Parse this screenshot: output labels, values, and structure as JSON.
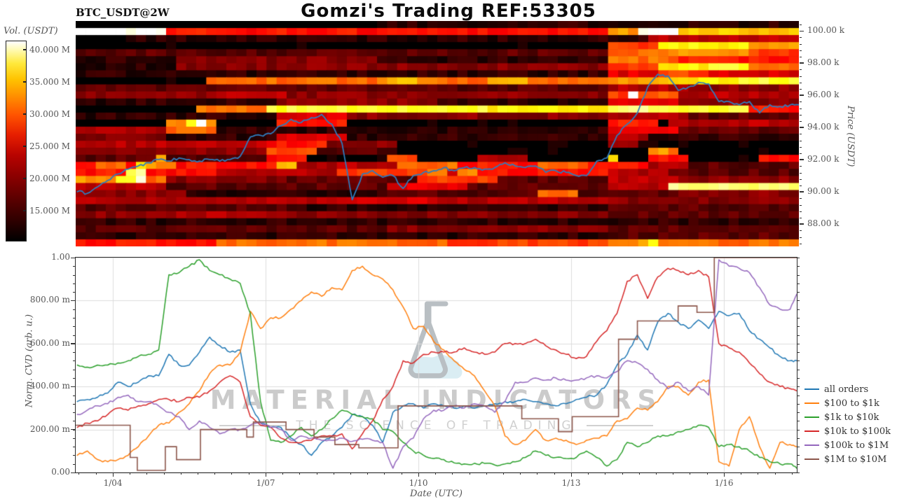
{
  "title": "Gomzi's Trading REF:53305",
  "pair_label": "BTC_USDT@2W",
  "colorbar": {
    "label": "Vol. (USDT)",
    "ticks": [
      {
        "label": "40.000 M",
        "value_m": 40
      },
      {
        "label": "35.000 M",
        "value_m": 35
      },
      {
        "label": "30.000 M",
        "value_m": 30
      },
      {
        "label": "25.000 M",
        "value_m": 25
      },
      {
        "label": "20.000 M",
        "value_m": 20
      },
      {
        "label": "15.000 M",
        "value_m": 15
      }
    ],
    "range_m": [
      10.2,
      41.4
    ]
  },
  "price_axis": {
    "label": "Price (USDT)",
    "ticks": [
      {
        "label": "100.00 k",
        "k": 100
      },
      {
        "label": "98.00 k",
        "k": 98
      },
      {
        "label": "96.00 k",
        "k": 96
      },
      {
        "label": "94.00 k",
        "k": 94
      },
      {
        "label": "92.00 k",
        "k": 92
      },
      {
        "label": "90.00 k",
        "k": 90
      },
      {
        "label": "88.00 k",
        "k": 88
      }
    ]
  },
  "cvd_axis": {
    "label": "Norm. CVD (arb. u.)",
    "ticks": [
      {
        "label": "1.00",
        "v": 1.0
      },
      {
        "label": "800.00 m",
        "v": 0.8
      },
      {
        "label": "600.00 m",
        "v": 0.6
      },
      {
        "label": "400.00 m",
        "v": 0.4
      },
      {
        "label": "200.00 m",
        "v": 0.2
      },
      {
        "label": "0.00",
        "v": 0.0
      }
    ]
  },
  "date_axis": {
    "label": "Date (UTC)",
    "ticks": [
      {
        "label": "1/04",
        "day": 4
      },
      {
        "label": "1/07",
        "day": 7
      },
      {
        "label": "1/10",
        "day": 10
      },
      {
        "label": "1/13",
        "day": 13
      },
      {
        "label": "1/16",
        "day": 16
      }
    ]
  },
  "watermark": {
    "line1": "MATERIAL INDICATORS",
    "line2": "THE SCIENCE OF TRADING"
  },
  "legend": [
    {
      "label": "all orders",
      "color": "#1f77b4"
    },
    {
      "label": "$100 to $1k",
      "color": "#ff7f0e"
    },
    {
      "label": "$1k to $10k",
      "color": "#2ca02c"
    },
    {
      "label": "$10k to $100k",
      "color": "#d62728"
    },
    {
      "label": "$100k to $1M",
      "color": "#9467bd"
    },
    {
      "label": "$1M to $10M",
      "color": "#8c564b"
    }
  ],
  "chart_data": [
    {
      "type": "heatmap",
      "title": "BTC_USDT@2W",
      "description": "Order-book volume liquidity heatmap (hot colormap, black=low, white=high) with BTC price line overlay",
      "x_unit": "day of January (UTC)",
      "xlim": [
        3.27,
        17.47
      ],
      "price_lim_k": [
        86.6,
        100.61
      ],
      "colorbar_label": "Vol. (USDT)",
      "rows": 32,
      "cols": 72,
      "intensity_rows_hex": [
        "000000000000000000000000000000111111111111111111111111111111111111111111",
        "fffffffff66666666666666666666666666666666666666666666999ffffaaaaaaaaaaaa",
        "000000111111111111111111111111111111111111111111111111111444444444444444",
        "000000000000000000000000000000000000000000000000000007777 7bbbbbbbbb99999",
        "222222222222222222222222222222222222222222222222222228888889999999977777",
        "111111111133333333333333333333111111111111111111111118888888666666666666",
        "1111111111333333333333333333333333333333333333333333377777bbbbbcccc88888",
        "111111111111111111111111111111111111111111111111111115555577777555555555",
        "0000000000000888888888888888888aaa8888888aaaa888888889 99aaaabbbbbbcccccc",
        "222222222222222222222222222222222222222222222222222224444444433333333333",
        "333333333333344444444333333333333333333333333333333337 7f8888444444444444",
        "111111111111111111113333333333333333111111111111111115555555333333333333",
        "0000000000008888888ccccccccccccccccccccccbbbbbbbbbbbbddddddcccccccc66666",
        "111111111111111111115555555333333333333333333333333334444444422222222222",
        "0000000009 9cf9000000666666600000000000000000000000000666660 4444444444444",
        "444444444888881111111111111111111111111111111111111115555555222222222222",
        "333333333111111111115555555111111111111111111111111114444111111111111111",
        "444444444444444444466666633333330000000000000000000004440000000000000000",
        "333333333333333333377777222222220000000000000000000000000 8a8000000000000",
        "22222222a2222222222666600000000777000000444440000000 0a000666600000006666 00",
        "668886b9996666666666aa444444444488888866666666888886666664444222222222222",
        "66666cd6666666444444444444777777777994 9966666666666664444442222222222222",
        "9999ccf88333333333333222222222222277777777222222222224444444333333333333",
        "444444444222222222222222222222255555555222222222222224444 44dddddddddddddd",
        "333333333331111111111111111111122222222222222288882222222222333333333333",
        "444444444444444444444444444455555555444444444444444443333333333333333333",
        "222222222222222222222111111111111111111111111111111112222222222222222222",
        "333333333344444444444333333333333333333333333333333332222222222222222222",
        "111111111111111111111111111111111111111111111111111111111111111111111111",
        "222222222222222222222222222222233333333333333333333332222222222222222222",
        "111111111111111111111111111111111111111111111111111112222222222222222222",
        "66666666666666888888888888888888888887777777777777777 99 99b88888888888888"
      ],
      "price_line": {
        "name": "BTC price",
        "color": "#2e7cbe",
        "x_start_day": 3.3,
        "x_step_day": 0.2,
        "values_k": [
          90.0,
          89.9,
          90.3,
          90.7,
          91.1,
          91.4,
          91.6,
          91.8,
          92.0,
          91.9,
          92.1,
          92.0,
          91.9,
          92.0,
          91.9,
          92.0,
          92.2,
          93.4,
          93.5,
          93.6,
          94.1,
          94.5,
          94.3,
          94.6,
          94.8,
          94.2,
          93.0,
          89.5,
          91.1,
          91.3,
          90.9,
          91.0,
          90.2,
          91.0,
          91.2,
          91.3,
          91.5,
          91.3,
          91.5,
          91.5,
          91.4,
          91.5,
          91.8,
          91.6,
          91.5,
          91.6,
          91.2,
          91.3,
          91.2,
          91.0,
          91.0,
          91.9,
          92.1,
          93.5,
          94.2,
          94.9,
          96.5,
          97.3,
          97.2,
          96.3,
          96.5,
          96.8,
          96.7,
          95.6,
          95.6,
          95.4,
          95.6,
          94.9,
          95.4,
          95.3,
          95.4,
          95.4
        ]
      }
    },
    {
      "type": "line",
      "xlabel": "Date (UTC)",
      "ylabel": "Norm. CVD (arb. u.)",
      "x_unit": "day of January (UTC)",
      "xlim": [
        3.27,
        17.43
      ],
      "ylim": [
        0,
        1
      ],
      "grid": true,
      "legend_position": "outside right-bottom",
      "x_start_day": 3.3,
      "x_step_day": 0.2,
      "series": [
        {
          "name": "all orders",
          "color": "#1f77b4",
          "values": [
            0.33,
            0.34,
            0.35,
            0.37,
            0.42,
            0.4,
            0.42,
            0.45,
            0.45,
            0.55,
            0.5,
            0.5,
            0.56,
            0.63,
            0.59,
            0.56,
            0.57,
            0.32,
            0.23,
            0.21,
            0.21,
            0.16,
            0.13,
            0.08,
            0.14,
            0.17,
            0.21,
            0.27,
            0.26,
            0.22,
            0.14,
            0.28,
            0.31,
            0.32,
            0.3,
            0.32,
            0.31,
            0.3,
            0.31,
            0.3,
            0.31,
            0.32,
            0.33,
            0.33,
            0.34,
            0.33,
            0.32,
            0.31,
            0.32,
            0.34,
            0.35,
            0.36,
            0.41,
            0.5,
            0.55,
            0.64,
            0.57,
            0.7,
            0.74,
            0.7,
            0.67,
            0.71,
            0.67,
            0.75,
            0.73,
            0.74,
            0.66,
            0.62,
            0.58,
            0.54,
            0.52,
            0.52
          ]
        },
        {
          "name": "$100 to $1k",
          "color": "#ff7f0e",
          "values": [
            0.08,
            0.1,
            0.06,
            0.05,
            0.06,
            0.08,
            0.12,
            0.17,
            0.22,
            0.23,
            0.28,
            0.32,
            0.38,
            0.46,
            0.5,
            0.5,
            0.56,
            0.75,
            0.67,
            0.72,
            0.72,
            0.76,
            0.8,
            0.84,
            0.82,
            0.86,
            0.85,
            0.94,
            0.96,
            0.92,
            0.9,
            0.85,
            0.77,
            0.67,
            0.68,
            0.61,
            0.57,
            0.52,
            0.48,
            0.45,
            0.38,
            0.31,
            0.17,
            0.13,
            0.15,
            0.2,
            0.15,
            0.16,
            0.15,
            0.13,
            0.15,
            0.16,
            0.17,
            0.24,
            0.25,
            0.3,
            0.29,
            0.33,
            0.4,
            0.4,
            0.36,
            0.42,
            0.43,
            0.05,
            0.03,
            0.2,
            0.26,
            0.12,
            0.02,
            0.14,
            0.13,
            0.12
          ]
        },
        {
          "name": "$1k to $10k",
          "color": "#2ca02c",
          "values": [
            0.5,
            0.49,
            0.5,
            0.5,
            0.51,
            0.52,
            0.54,
            0.55,
            0.57,
            0.92,
            0.93,
            0.96,
            0.99,
            0.94,
            0.92,
            0.9,
            0.88,
            0.74,
            0.33,
            0.15,
            0.14,
            0.17,
            0.21,
            0.17,
            0.2,
            0.25,
            0.29,
            0.27,
            0.26,
            0.25,
            0.2,
            0.19,
            0.14,
            0.1,
            0.08,
            0.065,
            0.06,
            0.045,
            0.04,
            0.043,
            0.042,
            0.035,
            0.04,
            0.05,
            0.07,
            0.1,
            0.08,
            0.07,
            0.065,
            0.07,
            0.1,
            0.07,
            0.03,
            0.06,
            0.14,
            0.12,
            0.14,
            0.17,
            0.17,
            0.19,
            0.2,
            0.22,
            0.21,
            0.12,
            0.13,
            0.12,
            0.1,
            0.07,
            0.05,
            0.04,
            0.04,
            0.02
          ]
        },
        {
          "name": "$10k to $100k",
          "color": "#d62728",
          "values": [
            0.21,
            0.23,
            0.24,
            0.27,
            0.3,
            0.29,
            0.31,
            0.32,
            0.34,
            0.34,
            0.33,
            0.35,
            0.35,
            0.38,
            0.42,
            0.45,
            0.42,
            0.26,
            0.22,
            0.21,
            0.16,
            0.14,
            0.14,
            0.15,
            0.17,
            0.17,
            0.18,
            0.11,
            0.18,
            0.24,
            0.34,
            0.4,
            0.52,
            0.51,
            0.55,
            0.56,
            0.56,
            0.56,
            0.58,
            0.56,
            0.55,
            0.56,
            0.6,
            0.6,
            0.6,
            0.62,
            0.59,
            0.57,
            0.55,
            0.53,
            0.54,
            0.61,
            0.66,
            0.74,
            0.89,
            0.92,
            0.81,
            0.91,
            0.95,
            0.94,
            0.92,
            0.94,
            0.91,
            0.6,
            0.58,
            0.56,
            0.51,
            0.46,
            0.42,
            0.4,
            0.39,
            0.38
          ]
        },
        {
          "name": "$100k to $1M",
          "color": "#9467bd",
          "values": [
            0.27,
            0.29,
            0.31,
            0.32,
            0.35,
            0.36,
            0.33,
            0.33,
            0.31,
            0.28,
            0.26,
            0.2,
            0.24,
            0.21,
            0.18,
            0.2,
            0.2,
            0.22,
            0.23,
            0.21,
            0.2,
            0.15,
            0.17,
            0.16,
            0.15,
            0.15,
            0.16,
            0.145,
            0.155,
            0.15,
            0.14,
            0.02,
            0.12,
            0.16,
            0.25,
            0.29,
            0.29,
            0.31,
            0.3,
            0.32,
            0.31,
            0.28,
            0.33,
            0.42,
            0.42,
            0.44,
            0.43,
            0.44,
            0.43,
            0.43,
            0.44,
            0.45,
            0.44,
            0.47,
            0.52,
            0.51,
            0.48,
            0.43,
            0.39,
            0.42,
            0.38,
            0.4,
            0.36,
            0.99,
            0.96,
            0.95,
            0.93,
            0.86,
            0.78,
            0.76,
            0.76,
            0.83
          ]
        }
      ],
      "step_series": [
        {
          "name": "$1M to $10M",
          "color": "#8c564b",
          "steps": [
            [
              3.27,
              0.22
            ],
            [
              4.34,
              0.07
            ],
            [
              4.48,
              0.01
            ],
            [
              5.03,
              0.12
            ],
            [
              5.25,
              0.06
            ],
            [
              5.72,
              0.2
            ],
            [
              6.63,
              0.165
            ],
            [
              6.76,
              0.235
            ],
            [
              7.4,
              0.2
            ],
            [
              7.95,
              0.165
            ],
            [
              8.36,
              0.13
            ],
            [
              8.83,
              0.115
            ],
            [
              9.6,
              0.31
            ],
            [
              12.03,
              0.25
            ],
            [
              12.75,
              0.19
            ],
            [
              13.02,
              0.26
            ],
            [
              13.93,
              0.62
            ],
            [
              14.3,
              0.705
            ],
            [
              15.1,
              0.775
            ],
            [
              15.47,
              0.745
            ],
            [
              15.81,
              1.0
            ],
            [
              17.43,
              1.0
            ]
          ]
        }
      ]
    }
  ]
}
